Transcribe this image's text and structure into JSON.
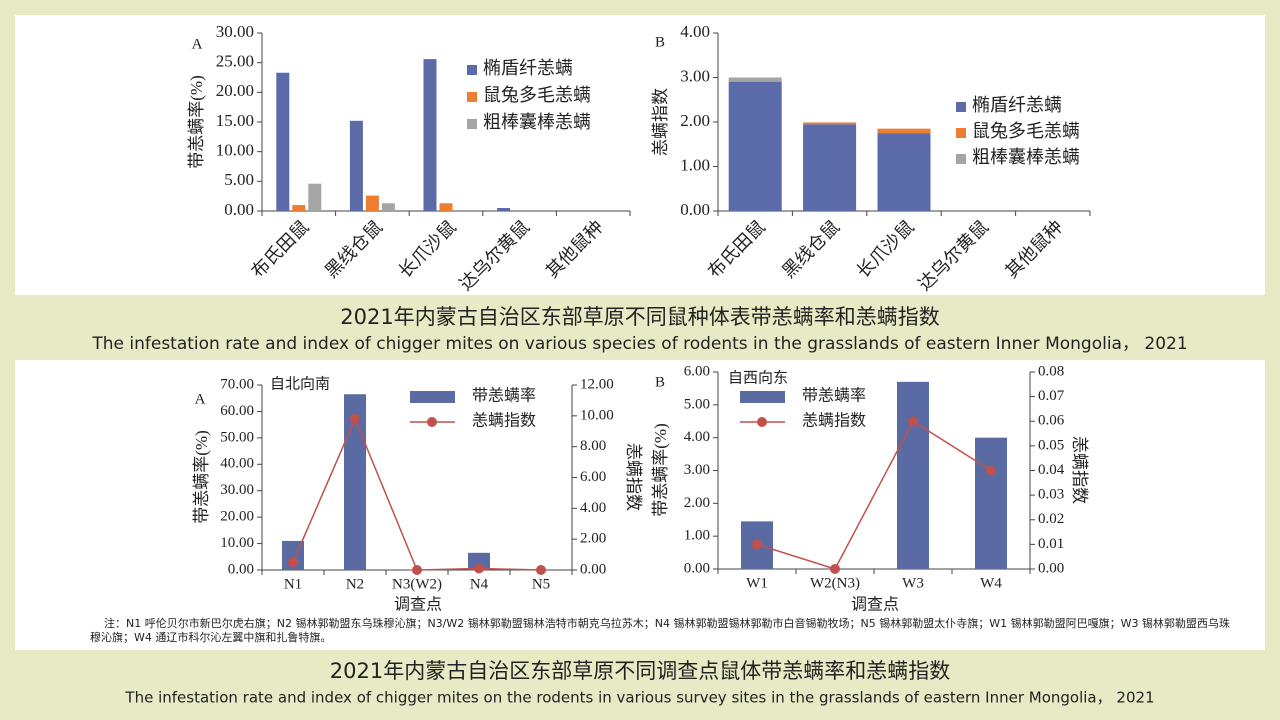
{
  "chart_data": [
    {
      "type": "bar",
      "panel_label": "A",
      "ylabel": "带恙螨率(%)",
      "categories": [
        "布氏田鼠",
        "黑线仓鼠",
        "长爪沙鼠",
        "达乌尔黄鼠",
        "其他鼠种"
      ],
      "series": [
        {
          "name": "椭盾纤恙螨",
          "color": "#5b6aa8",
          "values": [
            23.3,
            15.2,
            25.6,
            0.5,
            0
          ]
        },
        {
          "name": "鼠兔多毛恙螨",
          "color": "#ed7d31",
          "values": [
            1.0,
            2.6,
            1.3,
            0,
            0
          ]
        },
        {
          "name": "粗棒囊棒恙螨",
          "color": "#a5a5a5",
          "values": [
            4.6,
            1.3,
            0,
            0,
            0
          ]
        }
      ],
      "ylim": [
        0,
        30
      ],
      "yticks": [
        {
          "value": 0,
          "label": "0.00"
        },
        {
          "value": 5,
          "label": "5.00"
        },
        {
          "value": 10,
          "label": "10.00"
        },
        {
          "value": 15,
          "label": "15.00"
        },
        {
          "value": 20,
          "label": "20.00"
        },
        {
          "value": 25,
          "label": "25.00"
        },
        {
          "value": 30,
          "label": "30.00"
        }
      ]
    },
    {
      "type": "bar",
      "stacked": true,
      "panel_label": "B",
      "ylabel": "恙螨指数",
      "categories": [
        "布氏田鼠",
        "黑线仓鼠",
        "长爪沙鼠",
        "达乌尔黄鼠",
        "其他鼠种"
      ],
      "series": [
        {
          "name": "椭盾纤恙螨",
          "color": "#5b6aa8",
          "values": [
            2.9,
            1.95,
            1.75,
            0,
            0
          ]
        },
        {
          "name": "鼠兔多毛恙螨",
          "color": "#ed7d31",
          "values": [
            0.02,
            0.04,
            0.1,
            0,
            0
          ]
        },
        {
          "name": "粗棒囊棒恙螨",
          "color": "#a5a5a5",
          "values": [
            0.08,
            0,
            0,
            0,
            0
          ]
        }
      ],
      "ylim": [
        0,
        4
      ],
      "yticks": [
        {
          "value": 0,
          "label": "0.00"
        },
        {
          "value": 1,
          "label": "1.00"
        },
        {
          "value": 2,
          "label": "2.00"
        },
        {
          "value": 3,
          "label": "3.00"
        },
        {
          "value": 4,
          "label": "4.00"
        }
      ]
    },
    {
      "type": "combo",
      "panel_label": "A",
      "annotation": "自北向南",
      "xlabel": "调查点",
      "ylabel": "带恙螨率(%)",
      "y2label": "恙螨指数",
      "categories": [
        "N1",
        "N2",
        "N3(W2)",
        "N4",
        "N5"
      ],
      "series": [
        {
          "name": "带恙螨率",
          "type": "bar",
          "color": "#5a6aa2",
          "values": [
            11,
            66.5,
            0,
            6.5,
            0
          ]
        },
        {
          "name": "恙螨指数",
          "type": "line",
          "axis": "y2",
          "color": "#c0504d",
          "values": [
            0.5,
            9.8,
            0,
            0.1,
            0
          ]
        }
      ],
      "ylim": [
        0,
        70
      ],
      "yticks": [
        {
          "value": 0,
          "label": "0.00"
        },
        {
          "value": 10,
          "label": "10.00"
        },
        {
          "value": 20,
          "label": "20.00"
        },
        {
          "value": 30,
          "label": "30.00"
        },
        {
          "value": 40,
          "label": "40.00"
        },
        {
          "value": 50,
          "label": "50.00"
        },
        {
          "value": 60,
          "label": "60.00"
        },
        {
          "value": 70,
          "label": "70.00"
        }
      ],
      "y2lim": [
        0,
        12
      ],
      "y2ticks": [
        {
          "value": 0,
          "label": "0.00"
        },
        {
          "value": 2,
          "label": "2.00"
        },
        {
          "value": 4,
          "label": "4.00"
        },
        {
          "value": 6,
          "label": "6.00"
        },
        {
          "value": 8,
          "label": "8.00"
        },
        {
          "value": 10,
          "label": "10.00"
        },
        {
          "value": 12,
          "label": "12.00"
        }
      ]
    },
    {
      "type": "combo",
      "panel_label": "B",
      "annotation": "自西向东",
      "xlabel": "调查点",
      "ylabel": "带恙螨率(%)",
      "y2label": "恙螨指数",
      "categories": [
        "W1",
        "W2(N3)",
        "W3",
        "W4"
      ],
      "series": [
        {
          "name": "带恙螨率",
          "type": "bar",
          "color": "#5a6aa2",
          "values": [
            1.45,
            0,
            5.7,
            4.0
          ]
        },
        {
          "name": "恙螨指数",
          "type": "line",
          "axis": "y2",
          "color": "#c0504d",
          "values": [
            0.01,
            0,
            0.06,
            0.04
          ]
        }
      ],
      "ylim": [
        0,
        6
      ],
      "yticks": [
        {
          "value": 0,
          "label": "0.00"
        },
        {
          "value": 1,
          "label": "1.00"
        },
        {
          "value": 2,
          "label": "2.00"
        },
        {
          "value": 3,
          "label": "3.00"
        },
        {
          "value": 4,
          "label": "4.00"
        },
        {
          "value": 5,
          "label": "5.00"
        },
        {
          "value": 6,
          "label": "6.00"
        }
      ],
      "y2lim": [
        0,
        0.08
      ],
      "y2ticks": [
        {
          "value": 0,
          "label": "0.00"
        },
        0.01,
        0.02,
        0.03,
        0.04,
        0.05,
        0.06,
        0.07,
        0.08
      ]
    }
  ],
  "figure1": {
    "title": "2021年内蒙古自治区东部草原不同鼠种体表带恙螨率和恙螨指数",
    "subtitle": "The infestation rate and index of chigger mites on various species of rodents in the grasslands of eastern Inner Mongolia， 2021"
  },
  "figure2": {
    "note": "注：N1 呼伦贝尔市新巴尔虎右旗；N2 锡林郭勒盟东乌珠穆沁旗；N3/W2 锡林郭勒盟锡林浩特市朝克乌拉苏木；N4 锡林郭勒盟锡林郭勒市白音锡勒牧场；N5 锡林郭勒盟太仆寺旗；W1 锡林郭勒盟阿巴嘎旗；W3 锡林郭勒盟西乌珠穆沁旗；W4 通辽市科尔沁左翼中旗和扎鲁特旗。",
    "title": "2021年内蒙古自治区东部草原不同调查点鼠体带恙螨率和恙螨指数",
    "subtitle": "The infestation rate and index of chigger mites on the rodents in various survey sites in the grasslands of eastern Inner Mongolia， 2021"
  }
}
